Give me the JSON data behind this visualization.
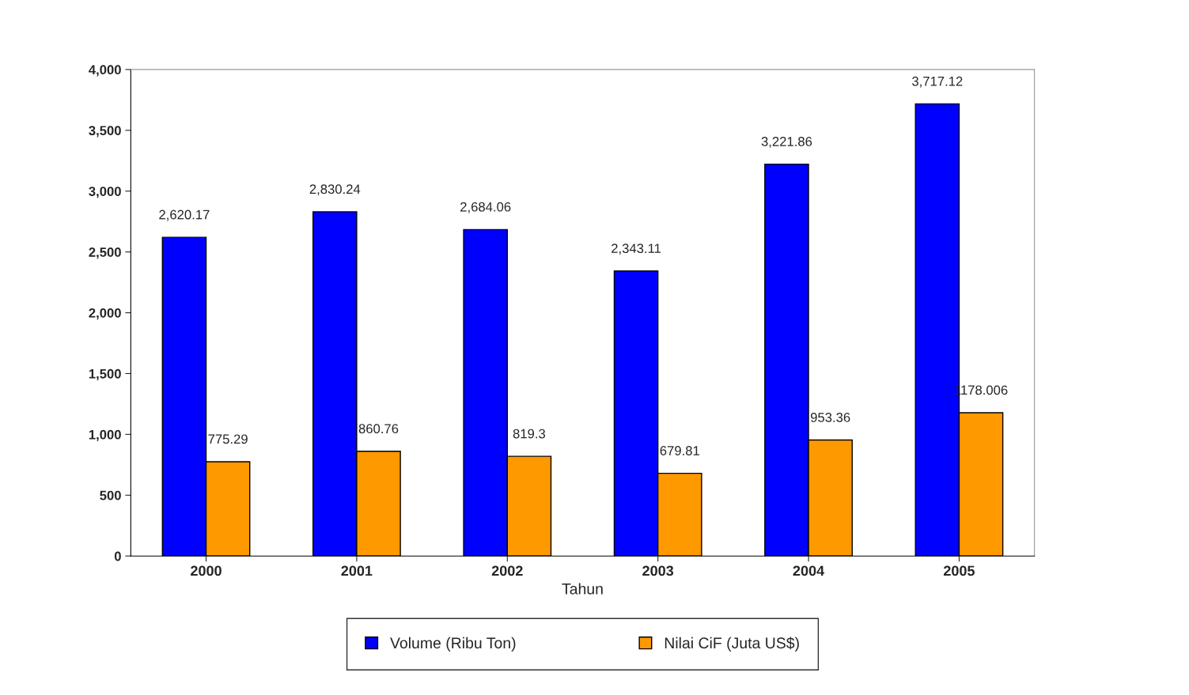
{
  "chart_data": {
    "type": "bar",
    "xlabel": "Tahun",
    "categories": [
      "2000",
      "2001",
      "2002",
      "2003",
      "2004",
      "2005"
    ],
    "series": [
      {
        "name": "Volume (Ribu Ton)",
        "color": "#0000ff",
        "values": [
          2620.17,
          2830.24,
          2684.06,
          2343.11,
          3221.86,
          3717.12
        ],
        "value_labels": [
          "2,620.17",
          "2,830.24",
          "2,684.06",
          "2,343.11",
          "3,221.86",
          "3,717.12"
        ]
      },
      {
        "name": "Nilai CiF (Juta US$)",
        "color": "#ff9900",
        "values": [
          775.29,
          860.76,
          819.3,
          679.81,
          953.36,
          1178.006
        ],
        "value_labels": [
          "775.29",
          "860.76",
          "819.3",
          "679.81",
          "953.36",
          "1178.006"
        ]
      }
    ],
    "ylim": [
      0,
      4000
    ],
    "yticks": [
      {
        "value": 0,
        "label": "0"
      },
      {
        "value": 500,
        "label": "500"
      },
      {
        "value": 1000,
        "label": "1,000"
      },
      {
        "value": 1500,
        "label": "1,500"
      },
      {
        "value": 2000,
        "label": "2,000"
      },
      {
        "value": 2500,
        "label": "2,500"
      },
      {
        "value": 3000,
        "label": "3,000"
      },
      {
        "value": 3500,
        "label": "3,500"
      },
      {
        "value": 4000,
        "label": "4,000"
      }
    ],
    "grid": false,
    "legend": "bottom"
  }
}
